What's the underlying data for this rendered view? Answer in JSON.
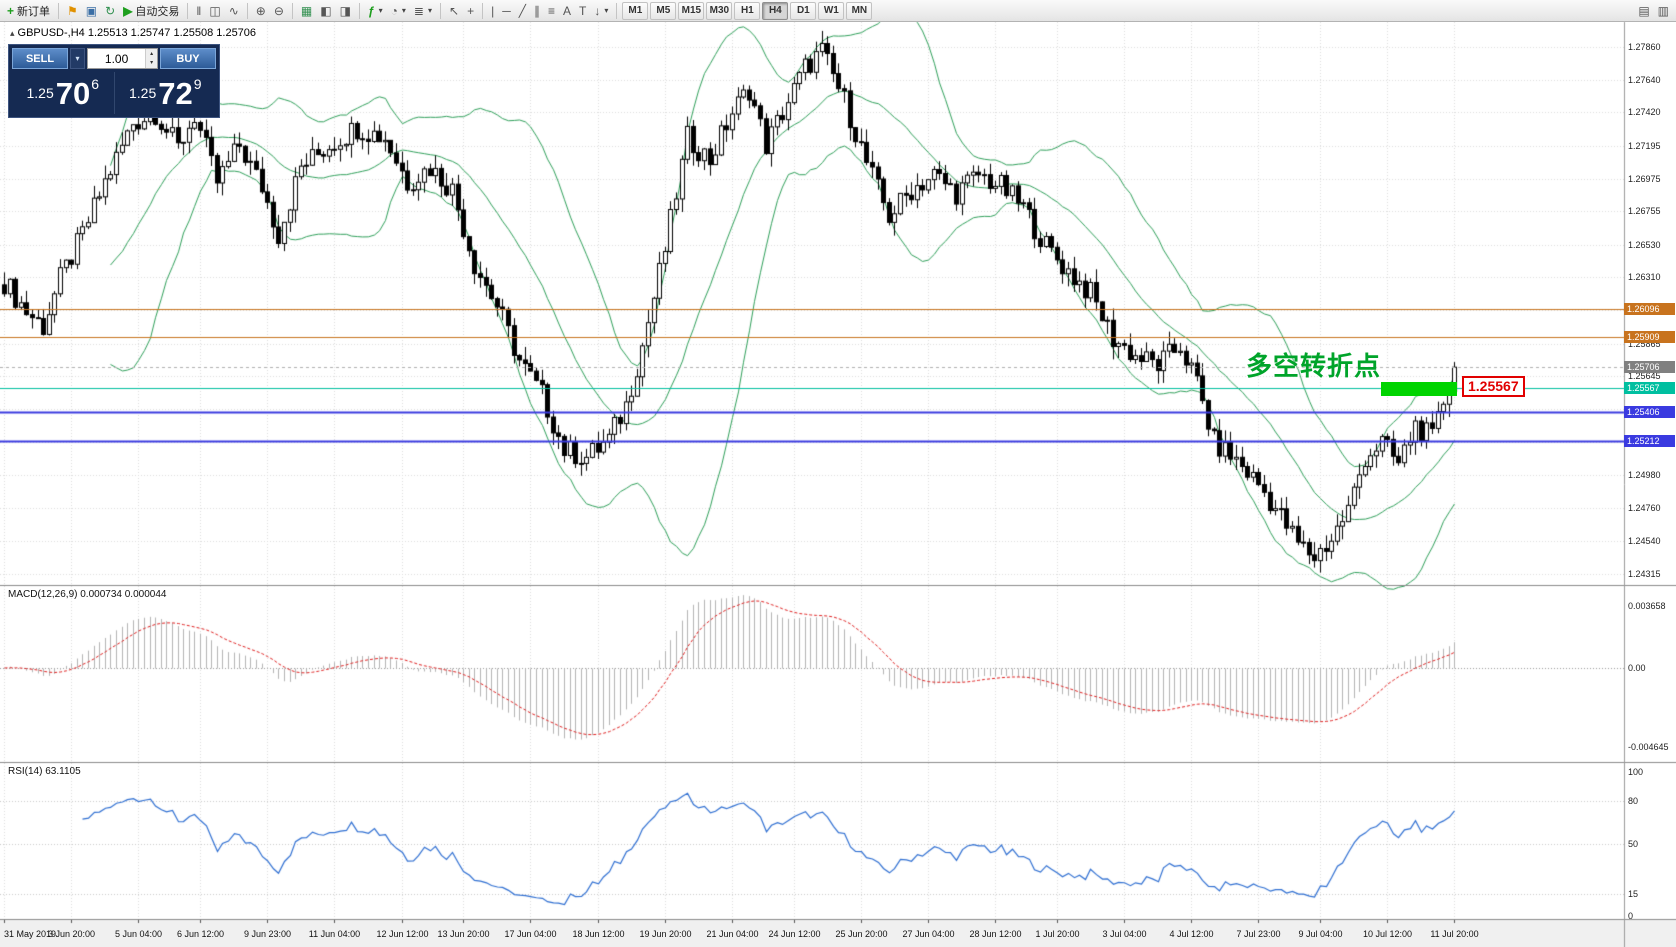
{
  "toolbar": {
    "new_order_label": "新订单",
    "auto_trading_label": "自动交易",
    "timeframes": [
      "M1",
      "M5",
      "M15",
      "M30",
      "H1",
      "H4",
      "D1",
      "W1",
      "MN"
    ],
    "active_timeframe": "H4"
  },
  "icons": {
    "new_order": "+",
    "flag": "⚑",
    "terminal": "▣",
    "refresh": "↻",
    "auto_play": "▶",
    "bar_chart": "‖",
    "candle_chart": "◫",
    "line_chart": "∿",
    "zoom_in": "⊕",
    "zoom_out": "⊖",
    "tile": "▦",
    "arrange_a": "◧",
    "arrange_b": "◨",
    "add_indicator": "ƒ",
    "period_clock": "◔",
    "template": "≣",
    "cursor": "↖",
    "crosshair": "+",
    "vline": "|",
    "hline": "─",
    "trendline": "╱",
    "channel": "∥",
    "fibo": "≡",
    "text": "A",
    "label": "T",
    "arrows": "↓",
    "caret": "▾",
    "win_a": "▤",
    "win_b": "▥",
    "symbol_marker": "▴"
  },
  "trade_panel": {
    "sell_label": "SELL",
    "buy_label": "BUY",
    "volume": "1.00",
    "sell_price_prefix": "1.25",
    "sell_price_main": "70",
    "sell_price_pip": "6",
    "buy_price_prefix": "1.25",
    "buy_price_main": "72",
    "buy_price_pip": "9"
  },
  "chart": {
    "title": "GBPUSD-,H4 1.25513 1.25747 1.25508 1.25706",
    "annotation": "多空转折点",
    "price_flag": "1.25567",
    "scale_labels": [
      {
        "label": "1.27860",
        "price": 1.2786
      },
      {
        "label": "1.27640",
        "price": 1.2764
      },
      {
        "label": "1.27420",
        "price": 1.2742
      },
      {
        "label": "1.27195",
        "price": 1.27195
      },
      {
        "label": "1.26975",
        "price": 1.26975
      },
      {
        "label": "1.26755",
        "price": 1.26755
      },
      {
        "label": "1.26530",
        "price": 1.2653
      },
      {
        "label": "1.26310",
        "price": 1.2631
      },
      {
        "label": "1.25865",
        "price": 1.25865
      },
      {
        "label": "1.25645",
        "price": 1.25645
      },
      {
        "label": "1.24980",
        "price": 1.2498
      },
      {
        "label": "1.24760",
        "price": 1.2476
      },
      {
        "label": "1.24540",
        "price": 1.2454
      },
      {
        "label": "1.24315",
        "price": 1.24315
      }
    ],
    "gridlines": [
      1.2786,
      1.2764,
      1.2742,
      1.27195,
      1.26975,
      1.26755,
      1.2653,
      1.2631,
      1.2609,
      1.25865,
      1.25645,
      1.25425,
      1.25205,
      1.2498,
      1.2476,
      1.2454,
      1.24315
    ],
    "levels": [
      {
        "price": 1.26096,
        "label": "1.26096",
        "color": "#c8731e",
        "width": 1,
        "dash": [],
        "chip": "#c8731e"
      },
      {
        "price": 1.25909,
        "label": "1.25909",
        "color": "#c8731e",
        "width": 1,
        "dash": [],
        "chip": "#c8731e"
      },
      {
        "price": 1.25706,
        "label": "1.25706",
        "color": "#b0b0b0",
        "width": 1,
        "dash": [
          3,
          3
        ],
        "chip": "#808080"
      },
      {
        "price": 1.25567,
        "label": "1.25567",
        "color": "#00bfa0",
        "width": 1,
        "dash": [],
        "chip": "#00bfa0"
      },
      {
        "price": 1.25406,
        "label": "1.25406",
        "color": "#3a3ae0",
        "width": 2,
        "dash": [],
        "chip": "#3a3ae0"
      },
      {
        "price": 1.25212,
        "label": "1.25212",
        "color": "#3a3ae0",
        "width": 2,
        "dash": [],
        "chip": "#3a3ae0"
      }
    ],
    "colors": {
      "bollinger": "#2fa05a",
      "bull": "#ffffff",
      "bear": "#000000",
      "wick": "#000000",
      "grid": "#dcdcdc",
      "macd_hist": "#b4b4b4",
      "macd_signal": "#e02020",
      "rsi_line": "#2f6fd2",
      "separator": "#8a8a8a",
      "axis_bg": "#f0f0f0"
    }
  },
  "macd": {
    "label": "MACD(12,26,9) 0.000734 0.000044",
    "scale": [
      {
        "label": "0.003658",
        "value": 0.003658
      },
      {
        "label": "0.00",
        "value": 0
      },
      {
        "label": "-0.004645",
        "value": -0.004645
      }
    ]
  },
  "rsi": {
    "label": "RSI(14) 63.1105",
    "scale": [
      {
        "label": "100",
        "value": 100
      },
      {
        "label": "80",
        "value": 80
      },
      {
        "label": "50",
        "value": 50
      },
      {
        "label": "15",
        "value": 15
      },
      {
        "label": "0",
        "value": 0
      }
    ],
    "levels": [
      80,
      50,
      15
    ]
  },
  "time_axis": [
    "31 May 2019",
    "3 Jun 20:00",
    "5 Jun 04:00",
    "6 Jun 12:00",
    "9 Jun 23:00",
    "11 Jun 04:00",
    "12 Jun 12:00",
    "13 Jun 20:00",
    "17 Jun 04:00",
    "18 Jun 12:00",
    "19 Jun 20:00",
    "21 Jun 04:00",
    "24 Jun 12:00",
    "25 Jun 20:00",
    "27 Jun 04:00",
    "28 Jun 12:00",
    "1 Jul 20:00",
    "3 Jul 04:00",
    "4 Jul 12:00",
    "7 Jul 23:00",
    "9 Jul 04:00",
    "10 Jul 12:00",
    "11 Jul 20:00"
  ],
  "chart_data": {
    "type": "candlestick",
    "symbol": "GBPUSD-",
    "timeframe": "H4",
    "ohlc_current": {
      "open": 1.25513,
      "high": 1.25747,
      "low": 1.25508,
      "close": 1.25706
    },
    "indicators": {
      "bollinger": {
        "period": 20,
        "deviation": 2
      },
      "macd": {
        "fast": 12,
        "slow": 26,
        "signal": 9,
        "value": 0.000734,
        "signal_value": 4.4e-05
      },
      "rsi": {
        "period": 14,
        "value": 63.1105
      }
    },
    "y_range": [
      1.2424,
      1.2803
    ],
    "num_candles": 260,
    "last_close": 1.25706,
    "waypoints": [
      [
        0,
        1.2628
      ],
      [
        4,
        1.2608
      ],
      [
        7,
        1.2598
      ],
      [
        10,
        1.263
      ],
      [
        14,
        1.266
      ],
      [
        18,
        1.2695
      ],
      [
        23,
        1.2735
      ],
      [
        27,
        1.2742
      ],
      [
        31,
        1.2718
      ],
      [
        34,
        1.274
      ],
      [
        38,
        1.2695
      ],
      [
        42,
        1.272
      ],
      [
        46,
        1.2692
      ],
      [
        49,
        1.266
      ],
      [
        53,
        1.2705
      ],
      [
        58,
        1.272
      ],
      [
        63,
        1.2732
      ],
      [
        68,
        1.2725
      ],
      [
        72,
        1.2695
      ],
      [
        76,
        1.2705
      ],
      [
        80,
        1.269
      ],
      [
        84,
        1.264
      ],
      [
        88,
        1.2612
      ],
      [
        92,
        1.2575
      ],
      [
        96,
        1.2552
      ],
      [
        100,
        1.2515
      ],
      [
        104,
        1.251
      ],
      [
        108,
        1.2522
      ],
      [
        111,
        1.2545
      ],
      [
        114,
        1.2585
      ],
      [
        118,
        1.265
      ],
      [
        122,
        1.2725
      ],
      [
        126,
        1.271
      ],
      [
        130,
        1.2742
      ],
      [
        133,
        1.2758
      ],
      [
        136,
        1.272
      ],
      [
        139,
        1.2742
      ],
      [
        143,
        1.2772
      ],
      [
        146,
        1.2783
      ],
      [
        150,
        1.275
      ],
      [
        154,
        1.2708
      ],
      [
        158,
        1.2672
      ],
      [
        162,
        1.269
      ],
      [
        166,
        1.27
      ],
      [
        170,
        1.2688
      ],
      [
        174,
        1.27
      ],
      [
        178,
        1.2692
      ],
      [
        182,
        1.2678
      ],
      [
        186,
        1.2652
      ],
      [
        190,
        1.2635
      ],
      [
        194,
        1.262
      ],
      [
        198,
        1.259
      ],
      [
        202,
        1.2578
      ],
      [
        206,
        1.2572
      ],
      [
        210,
        1.2585
      ],
      [
        213,
        1.256
      ],
      [
        216,
        1.252
      ],
      [
        220,
        1.2508
      ],
      [
        224,
        1.2492
      ],
      [
        228,
        1.247
      ],
      [
        231,
        1.2452
      ],
      [
        234,
        1.2443
      ],
      [
        237,
        1.2455
      ],
      [
        240,
        1.2475
      ],
      [
        243,
        1.251
      ],
      [
        246,
        1.252
      ],
      [
        249,
        1.2505
      ],
      [
        252,
        1.2532
      ],
      [
        255,
        1.2522
      ],
      [
        257,
        1.2548
      ],
      [
        259,
        1.25706
      ]
    ]
  }
}
